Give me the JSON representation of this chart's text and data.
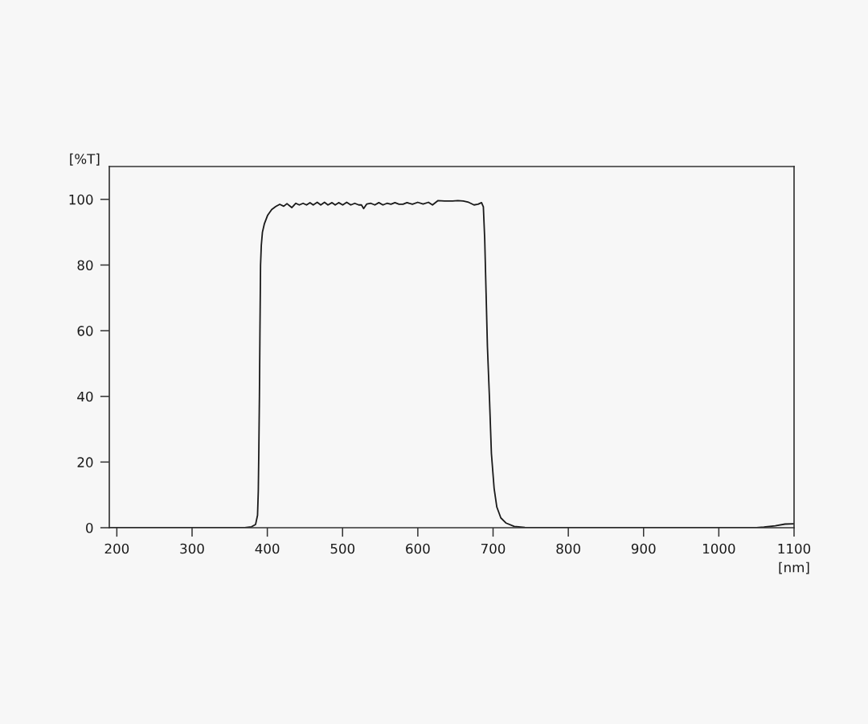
{
  "chart_data": {
    "type": "line",
    "xlabel": "[nm]",
    "ylabel": "[%T]",
    "xlim": [
      190,
      1100
    ],
    "ylim": [
      0,
      110
    ],
    "xticks": [
      200,
      300,
      400,
      500,
      600,
      700,
      800,
      900,
      1000,
      1100
    ],
    "yticks": [
      0,
      20,
      40,
      60,
      80,
      100
    ],
    "grid": false,
    "line_style": "solid",
    "series": [
      {
        "color": "#1a1a1a",
        "x": [
          190,
          300,
          370,
          379,
          384.4,
          387,
          388,
          388.7,
          389.5,
          390.2,
          391,
          392,
          393.5,
          396,
          400.5,
          405.8,
          411.1,
          416.5,
          421.8,
          426.1,
          432.5,
          437.9,
          442.5,
          447.5,
          452.1,
          456.7,
          461,
          466.3,
          471,
          476,
          480.6,
          486,
          490.2,
          494.8,
          500.2,
          505.5,
          510.9,
          516.2,
          521.5,
          525.1,
          528,
          532.2,
          537.6,
          542.9,
          548.2,
          553.6,
          559,
          564.3,
          569.6,
          575,
          580.3,
          585.6,
          592.8,
          599.9,
          607,
          614.1,
          619.5,
          626.6,
          635.5,
          646.2,
          653.3,
          660.4,
          667.5,
          674.7,
          680,
          684.7,
          687.1,
          688.9,
          690.7,
          692.5,
          695.3,
          697.8,
          701.4,
          705,
          710.3,
          717.4,
          728.1,
          742.3,
          760,
          1050,
          1060,
          1075,
          1088,
          1100
        ],
        "values": [
          0,
          0,
          0,
          0.3,
          1.0,
          3.8,
          11.2,
          23.4,
          40,
          60,
          80,
          86,
          90,
          92.5,
          95.2,
          96.9,
          97.8,
          98.5,
          97.9,
          98.7,
          97.5,
          98.8,
          98.3,
          98.8,
          98.3,
          99.0,
          98.3,
          99.1,
          98.3,
          99.1,
          98.3,
          99.0,
          98.3,
          99.0,
          98.3,
          99.1,
          98.3,
          98.8,
          98.3,
          98.3,
          97.2,
          98.6,
          98.8,
          98.3,
          99.0,
          98.3,
          98.8,
          98.5,
          99.0,
          98.5,
          98.5,
          99.0,
          98.5,
          99.1,
          98.6,
          99.1,
          98.3,
          99.6,
          99.5,
          99.5,
          99.6,
          99.5,
          99.1,
          98.3,
          98.5,
          99.0,
          97.7,
          87.9,
          71.6,
          55.2,
          38.9,
          22.6,
          12.0,
          6.3,
          3.0,
          1.4,
          0.4,
          0.1,
          0,
          0,
          0.2,
          0.6,
          1.1,
          1.2
        ]
      }
    ]
  }
}
